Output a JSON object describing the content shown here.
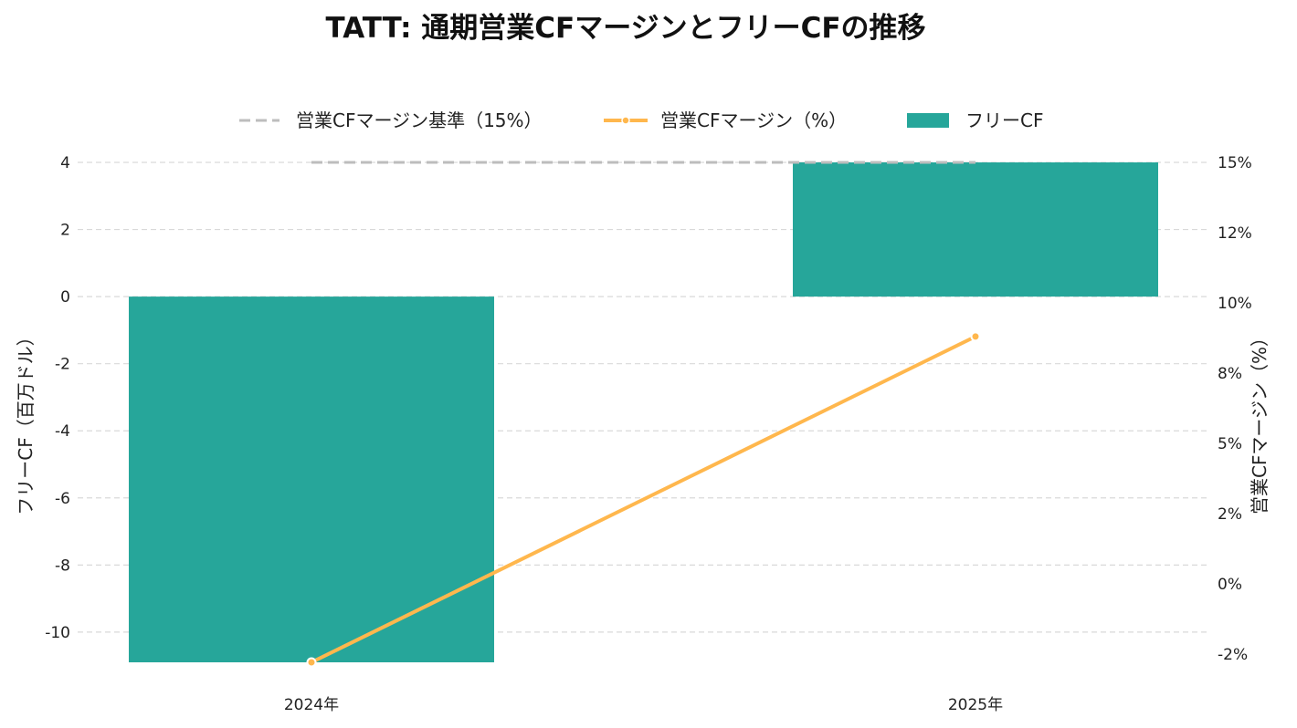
{
  "chart_data": {
    "type": "bar",
    "title": "TATT: 通期営業CFマージンとフリーCFの推移",
    "categories": [
      "2024年",
      "2025年"
    ],
    "series": [
      {
        "name": "フリーCF",
        "kind": "bar",
        "axis": "left",
        "color": "#26A69A",
        "values": [
          -10.9,
          4.0
        ]
      },
      {
        "name": "営業CFマージン（%）",
        "kind": "line",
        "axis": "right",
        "color": "#FFB74D",
        "values": [
          -2.8,
          8.8
        ]
      },
      {
        "name": "営業CFマージン基準（15%）",
        "kind": "reference",
        "axis": "right",
        "color": "#BDBDBD",
        "values": [
          15,
          15
        ]
      }
    ],
    "ylabel": "フリーCF（百万ドル）",
    "y2label": "営業CFマージン（%）",
    "ylim": [
      -10.9,
      4.0
    ],
    "y2lim": [
      -2.8,
      15.0
    ],
    "yticks": [
      4,
      2,
      0,
      -2,
      -4,
      -6,
      -8,
      -10
    ],
    "ytick_labels": [
      "4",
      "2",
      "0",
      "-2",
      "-4",
      "-6",
      "-8",
      "-10"
    ],
    "y2ticks": [
      15,
      12.5,
      10,
      7.5,
      5,
      2.5,
      0,
      -2.5
    ],
    "y2tick_labels": [
      "15%",
      "12%",
      "10%",
      "8%",
      "5%",
      "2%",
      "0%",
      "-2%"
    ],
    "grid": true,
    "legend_position": "top-center",
    "legend_order": [
      "営業CFマージン基準（15%）",
      "営業CFマージン（%）",
      "フリーCF"
    ]
  }
}
